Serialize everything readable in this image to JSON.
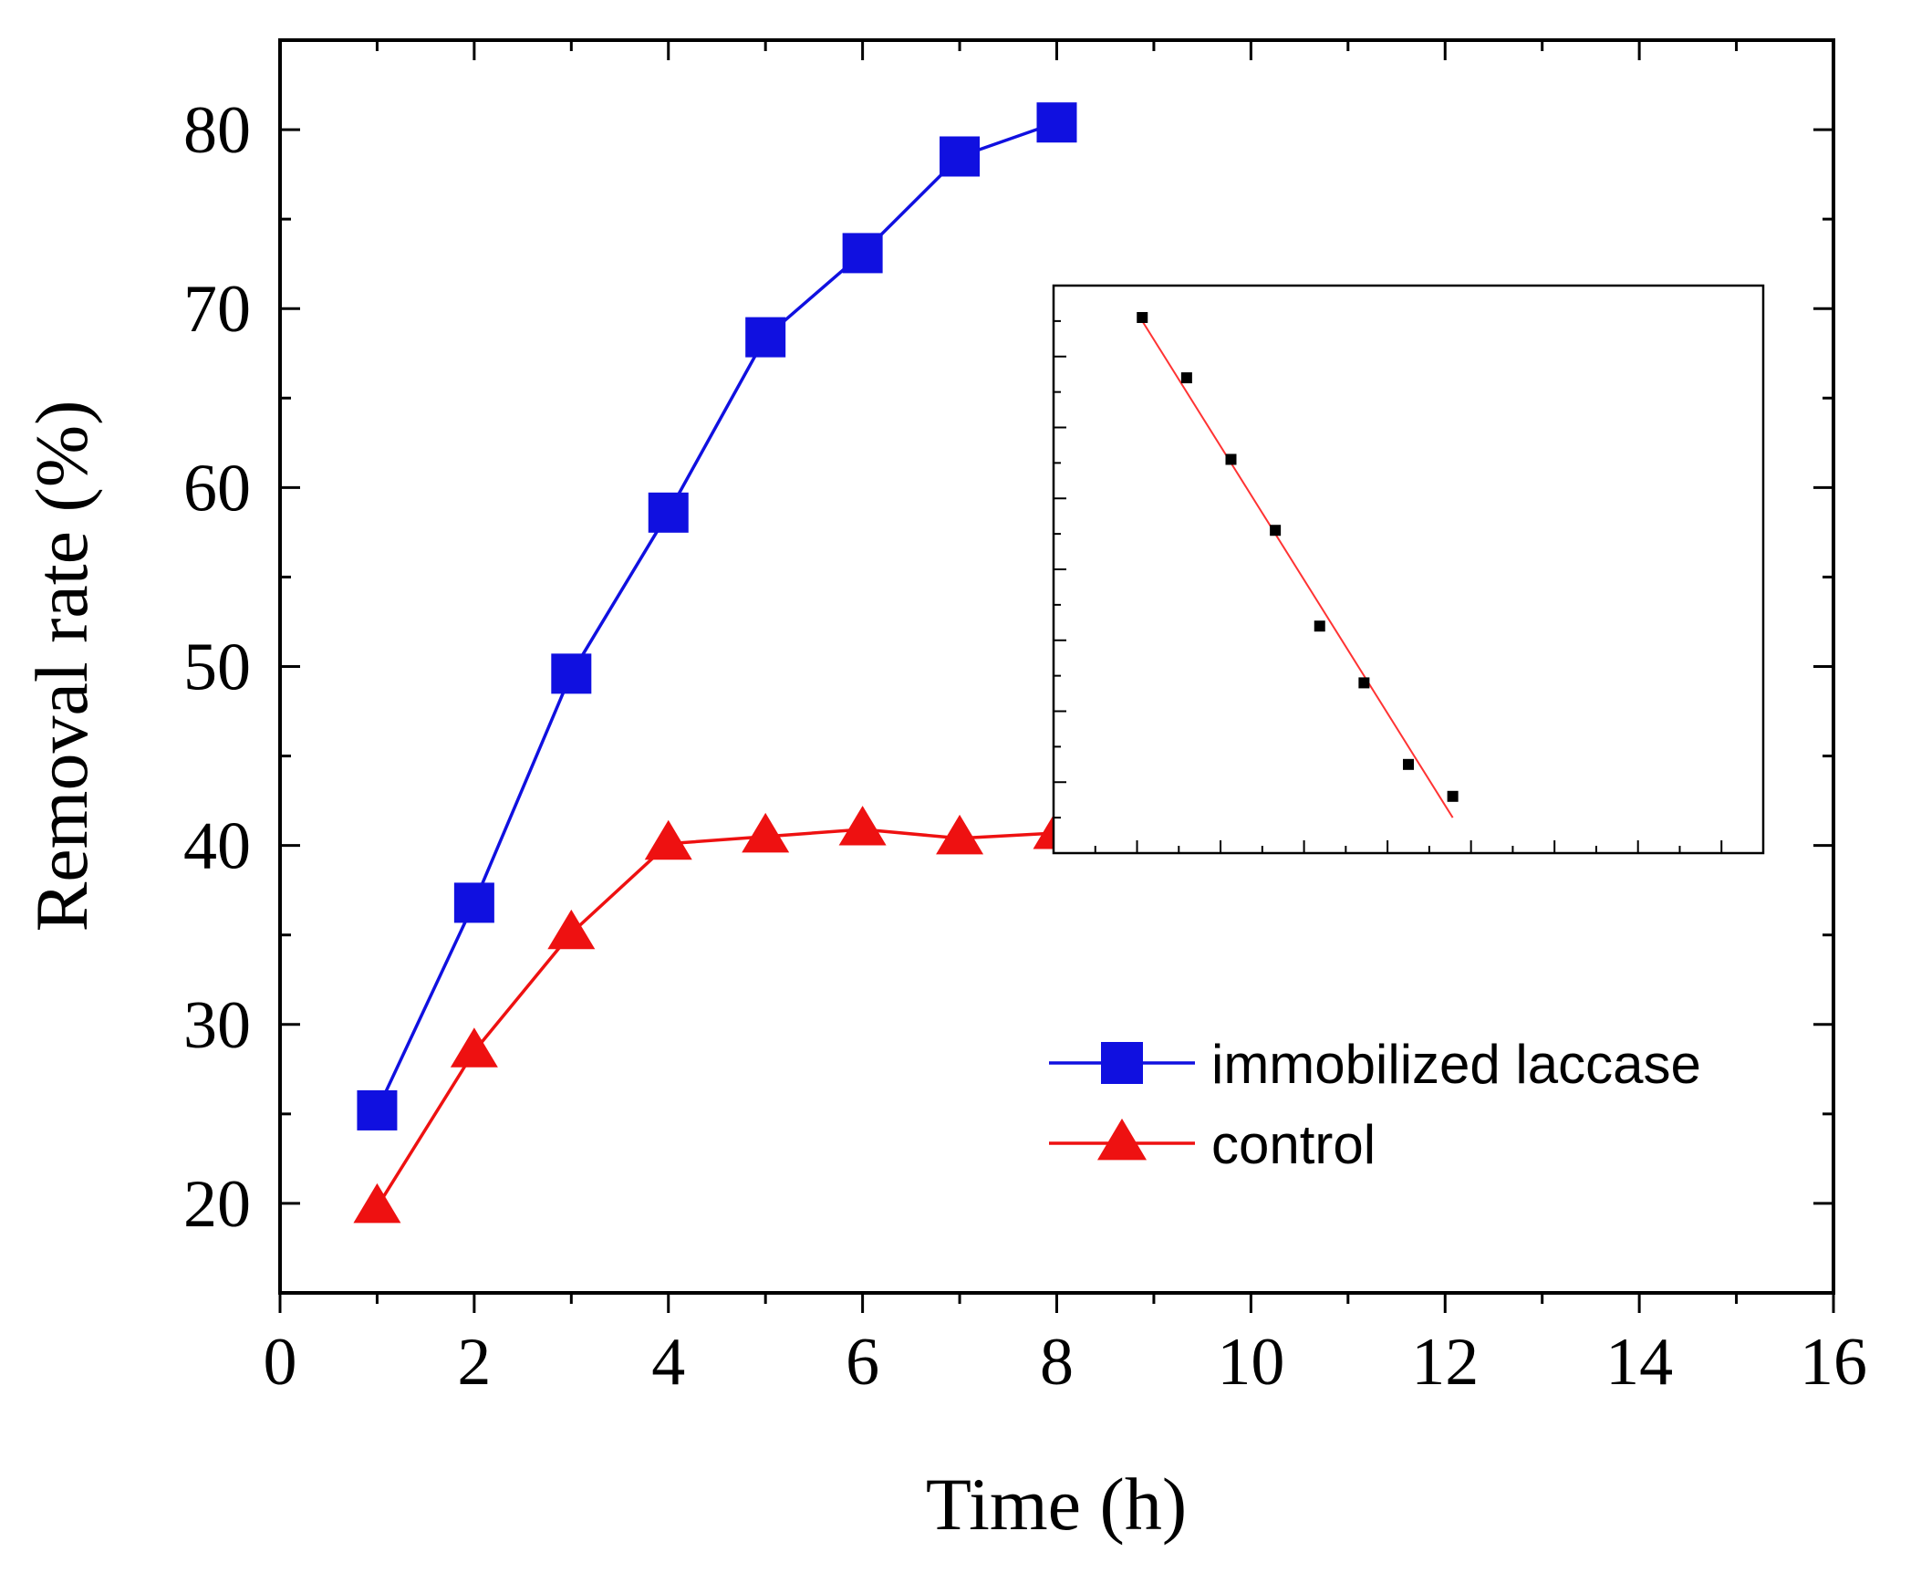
{
  "chart_data": {
    "type": "line",
    "title": "",
    "xlabel": "Time (h)",
    "ylabel": "Removal rate (%)",
    "xlim": [
      0,
      16
    ],
    "ylim": [
      15,
      85
    ],
    "x_ticks": [
      "0",
      "2",
      "4",
      "6",
      "8",
      "10",
      "12",
      "14",
      "16"
    ],
    "y_ticks": [
      "20",
      "30",
      "40",
      "50",
      "60",
      "70",
      "80"
    ],
    "grid": false,
    "legend_position": "bottom-right",
    "series": [
      {
        "name": "immobilized laccase",
        "color": "#1010e0",
        "marker": "square",
        "x": [
          1,
          2,
          3,
          4,
          5,
          6,
          7,
          8
        ],
        "y": [
          25.2,
          36.8,
          49.6,
          58.6,
          68.4,
          73.1,
          78.5,
          80.4
        ]
      },
      {
        "name": "control",
        "color": "#ee1111",
        "marker": "triangle",
        "x": [
          1,
          2,
          3,
          4,
          5,
          6,
          7,
          8
        ],
        "y": [
          19.8,
          28.5,
          35.1,
          40.1,
          40.5,
          40.9,
          40.4,
          40.7
        ]
      }
    ],
    "inset": {
      "type": "scatter",
      "axis_labels_visible": false,
      "xlim": [
        0,
        8
      ],
      "ylim": [
        0,
        8
      ],
      "points": {
        "color": "#000000",
        "x": [
          1,
          1.5,
          2,
          2.5,
          3,
          3.5,
          4,
          4.5
        ],
        "y": [
          7.55,
          6.7,
          5.55,
          4.55,
          3.2,
          2.4,
          1.25,
          0.8
        ]
      },
      "fit_line": {
        "color": "#ff3333",
        "x": [
          1,
          4.5
        ],
        "y": [
          7.5,
          0.5
        ]
      }
    }
  }
}
